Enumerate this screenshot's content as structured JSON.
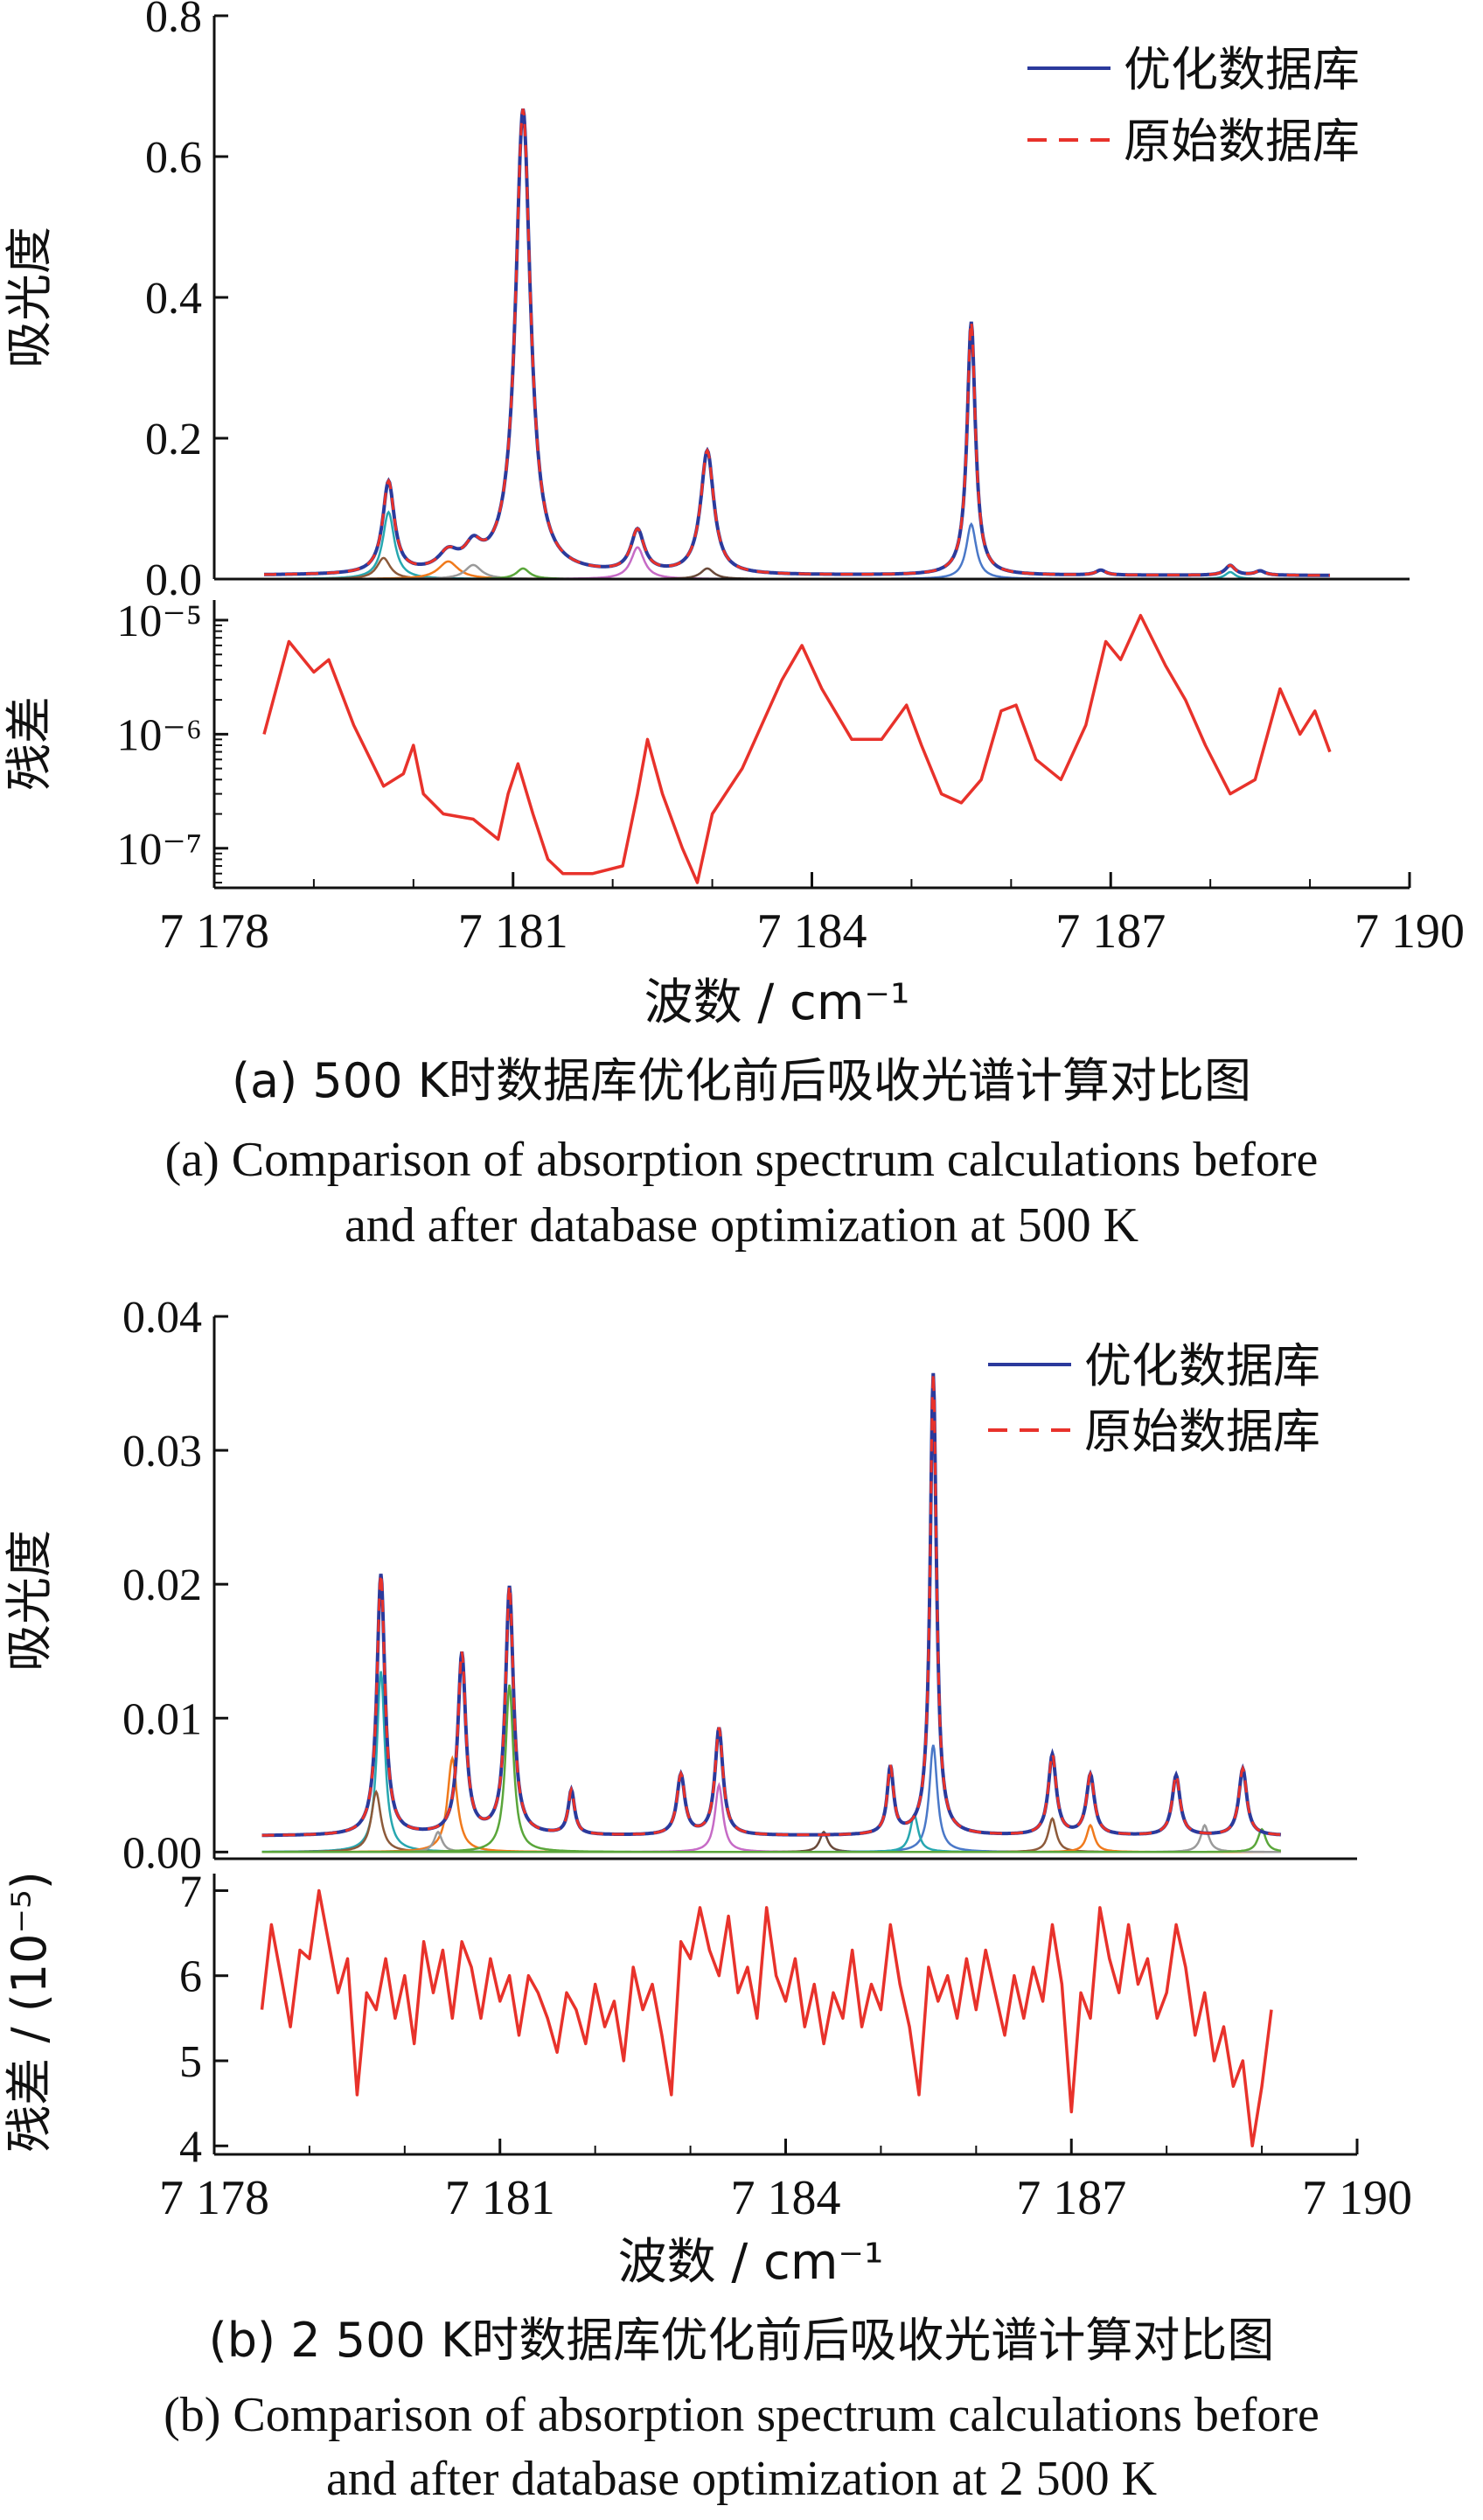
{
  "panels": [
    {
      "caption_cn": "(a) 500 K时数据库优化前后吸收光谱计算对比图",
      "caption_en_line1": "(a) Comparison of absorption spectrum calculations before",
      "caption_en_line2": "and after database optimization at 500 K"
    },
    {
      "caption_cn": "(b) 2 500 K时数据库优化前后吸收光谱计算对比图",
      "caption_en_line1": "(b) Comparison of absorption spectrum calculations before",
      "caption_en_line2": "and after database optimization at 2 500 K"
    }
  ],
  "colors": {
    "optimized": "#2b3a9c",
    "original": "#e8322b",
    "residual": "#e8322b",
    "components": [
      "#27a7b0",
      "#8d5a3a",
      "#f07a1c",
      "#9a9a9a",
      "#5aa63a",
      "#c66bc6",
      "#6a4a3a",
      "#4a78c8"
    ]
  },
  "chart_data": [
    {
      "type": "line",
      "panel": "a",
      "xlabel": "波数 / cm⁻¹",
      "xlim": [
        7178,
        7190
      ],
      "xticks": [
        7178,
        7181,
        7184,
        7187,
        7190
      ],
      "xtick_labels": [
        "7 178",
        "7 181",
        "7 184",
        "7 187",
        "7 190"
      ],
      "x_range": [
        7178.5,
        7189.2
      ],
      "absorbance": {
        "ylabel": "吸光度",
        "ylim": [
          0,
          0.8
        ],
        "yticks": [
          0.0,
          0.2,
          0.4,
          0.6,
          0.8
        ],
        "ytick_labels": [
          "0.0",
          "0.2",
          "0.4",
          "0.6",
          "0.8"
        ],
        "legend": [
          "优化数据库",
          "原始数据库"
        ],
        "legend_position": "top-right",
        "baseline": 0.005,
        "peaks": [
          {
            "x": 7179.75,
            "height": 0.13,
            "width": 0.07
          },
          {
            "x": 7180.35,
            "height": 0.025,
            "width": 0.12
          },
          {
            "x": 7180.6,
            "height": 0.03,
            "width": 0.1
          },
          {
            "x": 7181.1,
            "height": 0.66,
            "width": 0.09
          },
          {
            "x": 7182.25,
            "height": 0.06,
            "width": 0.08
          },
          {
            "x": 7182.95,
            "height": 0.175,
            "width": 0.08
          },
          {
            "x": 7185.6,
            "height": 0.36,
            "width": 0.05
          },
          {
            "x": 7186.9,
            "height": 0.007,
            "width": 0.06
          },
          {
            "x": 7188.2,
            "height": 0.014,
            "width": 0.06
          },
          {
            "x": 7188.5,
            "height": 0.006,
            "width": 0.06
          }
        ],
        "components": [
          {
            "x": 7179.75,
            "height": 0.095,
            "width": 0.07
          },
          {
            "x": 7179.7,
            "height": 0.03,
            "width": 0.08
          },
          {
            "x": 7180.35,
            "height": 0.025,
            "width": 0.12
          },
          {
            "x": 7180.6,
            "height": 0.02,
            "width": 0.1
          },
          {
            "x": 7181.1,
            "height": 0.015,
            "width": 0.08
          },
          {
            "x": 7182.25,
            "height": 0.045,
            "width": 0.08
          },
          {
            "x": 7182.95,
            "height": 0.015,
            "width": 0.08
          },
          {
            "x": 7185.6,
            "height": 0.078,
            "width": 0.06
          },
          {
            "x": 7188.2,
            "height": 0.01,
            "width": 0.06
          }
        ]
      },
      "residual": {
        "ylabel": "残差",
        "scale": "log",
        "ylim": [
          4.5e-08,
          1.5e-05
        ],
        "yticks": [
          1e-07,
          1e-06,
          1e-05
        ],
        "ytick_labels": [
          "10⁻⁷",
          "10⁻⁶",
          "10⁻⁵"
        ],
        "points": [
          [
            7178.5,
            1e-06
          ],
          [
            7178.75,
            6.5e-06
          ],
          [
            7179.0,
            3.5e-06
          ],
          [
            7179.15,
            4.5e-06
          ],
          [
            7179.4,
            1.2e-06
          ],
          [
            7179.7,
            3.5e-07
          ],
          [
            7179.9,
            4.5e-07
          ],
          [
            7180.0,
            8e-07
          ],
          [
            7180.1,
            3e-07
          ],
          [
            7180.3,
            2e-07
          ],
          [
            7180.6,
            1.8e-07
          ],
          [
            7180.85,
            1.2e-07
          ],
          [
            7180.95,
            3e-07
          ],
          [
            7181.05,
            5.5e-07
          ],
          [
            7181.2,
            2e-07
          ],
          [
            7181.35,
            8e-08
          ],
          [
            7181.5,
            6e-08
          ],
          [
            7181.8,
            6e-08
          ],
          [
            7182.1,
            7e-08
          ],
          [
            7182.25,
            3e-07
          ],
          [
            7182.35,
            9e-07
          ],
          [
            7182.5,
            3e-07
          ],
          [
            7182.7,
            1e-07
          ],
          [
            7182.85,
            5e-08
          ],
          [
            7183.0,
            2e-07
          ],
          [
            7183.3,
            5e-07
          ],
          [
            7183.7,
            3e-06
          ],
          [
            7183.9,
            6e-06
          ],
          [
            7184.1,
            2.5e-06
          ],
          [
            7184.4,
            9e-07
          ],
          [
            7184.7,
            9e-07
          ],
          [
            7184.95,
            1.8e-06
          ],
          [
            7185.1,
            8e-07
          ],
          [
            7185.3,
            3e-07
          ],
          [
            7185.5,
            2.5e-07
          ],
          [
            7185.7,
            4e-07
          ],
          [
            7185.9,
            1.6e-06
          ],
          [
            7186.05,
            1.8e-06
          ],
          [
            7186.25,
            6e-07
          ],
          [
            7186.5,
            4e-07
          ],
          [
            7186.75,
            1.2e-06
          ],
          [
            7186.95,
            6.5e-06
          ],
          [
            7187.1,
            4.5e-06
          ],
          [
            7187.3,
            1.1e-05
          ],
          [
            7187.55,
            4e-06
          ],
          [
            7187.75,
            2e-06
          ],
          [
            7187.95,
            8e-07
          ],
          [
            7188.2,
            3e-07
          ],
          [
            7188.45,
            4e-07
          ],
          [
            7188.7,
            2.5e-06
          ],
          [
            7188.9,
            1e-06
          ],
          [
            7189.05,
            1.6e-06
          ],
          [
            7189.2,
            7e-07
          ]
        ]
      }
    },
    {
      "type": "line",
      "panel": "b",
      "xlabel": "波数 / cm⁻¹",
      "xlim": [
        7178,
        7190
      ],
      "xticks": [
        7178,
        7181,
        7184,
        7187,
        7190
      ],
      "xtick_labels": [
        "7 178",
        "7 181",
        "7 184",
        "7 187",
        "7 190"
      ],
      "x_range": [
        7178.5,
        7189.2
      ],
      "absorbance": {
        "ylabel": "吸光度",
        "ylim": [
          -0.0005,
          0.04
        ],
        "yticks": [
          0.0,
          0.01,
          0.02,
          0.03,
          0.04
        ],
        "ytick_labels": [
          "0.00",
          "0.01",
          "0.02",
          "0.03",
          "0.04"
        ],
        "legend": [
          "优化数据库",
          "原始数据库"
        ],
        "legend_position": "top-right",
        "baseline": 0.0012,
        "peaks": [
          {
            "x": 7179.75,
            "height": 0.0195,
            "width": 0.05
          },
          {
            "x": 7180.6,
            "height": 0.0135,
            "width": 0.05
          },
          {
            "x": 7181.1,
            "height": 0.0185,
            "width": 0.05
          },
          {
            "x": 7181.75,
            "height": 0.0033,
            "width": 0.04
          },
          {
            "x": 7182.9,
            "height": 0.0045,
            "width": 0.05
          },
          {
            "x": 7183.3,
            "height": 0.008,
            "width": 0.05
          },
          {
            "x": 7185.1,
            "height": 0.005,
            "width": 0.04
          },
          {
            "x": 7185.55,
            "height": 0.0345,
            "width": 0.04
          },
          {
            "x": 7186.8,
            "height": 0.006,
            "width": 0.05
          },
          {
            "x": 7187.2,
            "height": 0.0045,
            "width": 0.05
          },
          {
            "x": 7188.1,
            "height": 0.0045,
            "width": 0.05
          },
          {
            "x": 7188.8,
            "height": 0.005,
            "width": 0.05
          }
        ],
        "components": [
          {
            "x": 7179.75,
            "height": 0.0135,
            "width": 0.05
          },
          {
            "x": 7179.7,
            "height": 0.0045,
            "width": 0.06
          },
          {
            "x": 7180.5,
            "height": 0.007,
            "width": 0.06
          },
          {
            "x": 7180.35,
            "height": 0.0015,
            "width": 0.05
          },
          {
            "x": 7181.1,
            "height": 0.0125,
            "width": 0.05
          },
          {
            "x": 7183.3,
            "height": 0.005,
            "width": 0.05
          },
          {
            "x": 7184.4,
            "height": 0.0015,
            "width": 0.05
          },
          {
            "x": 7185.55,
            "height": 0.008,
            "width": 0.05
          },
          {
            "x": 7185.35,
            "height": 0.0028,
            "width": 0.05
          },
          {
            "x": 7186.8,
            "height": 0.0025,
            "width": 0.05
          },
          {
            "x": 7187.2,
            "height": 0.002,
            "width": 0.05
          },
          {
            "x": 7188.4,
            "height": 0.002,
            "width": 0.05
          },
          {
            "x": 7189.0,
            "height": 0.0017,
            "width": 0.05
          }
        ]
      },
      "residual": {
        "ylabel": "残差 / (10⁻⁵)",
        "ylim": [
          3.9,
          7.2
        ],
        "yticks": [
          4,
          5,
          6,
          7
        ],
        "ytick_labels": [
          "4",
          "5",
          "6",
          "7"
        ],
        "points": [
          [
            7178.5,
            5.6
          ],
          [
            7178.6,
            6.6
          ],
          [
            7178.7,
            6.0
          ],
          [
            7178.8,
            5.4
          ],
          [
            7178.9,
            6.3
          ],
          [
            7179.0,
            6.2
          ],
          [
            7179.1,
            7.0
          ],
          [
            7179.2,
            6.4
          ],
          [
            7179.3,
            5.8
          ],
          [
            7179.4,
            6.2
          ],
          [
            7179.5,
            4.6
          ],
          [
            7179.6,
            5.8
          ],
          [
            7179.7,
            5.6
          ],
          [
            7179.8,
            6.2
          ],
          [
            7179.9,
            5.5
          ],
          [
            7180.0,
            6.0
          ],
          [
            7180.1,
            5.2
          ],
          [
            7180.2,
            6.4
          ],
          [
            7180.3,
            5.8
          ],
          [
            7180.4,
            6.3
          ],
          [
            7180.5,
            5.5
          ],
          [
            7180.6,
            6.4
          ],
          [
            7180.7,
            6.1
          ],
          [
            7180.8,
            5.5
          ],
          [
            7180.9,
            6.2
          ],
          [
            7181.0,
            5.7
          ],
          [
            7181.1,
            6.0
          ],
          [
            7181.2,
            5.3
          ],
          [
            7181.3,
            6.0
          ],
          [
            7181.4,
            5.8
          ],
          [
            7181.5,
            5.5
          ],
          [
            7181.6,
            5.1
          ],
          [
            7181.7,
            5.8
          ],
          [
            7181.8,
            5.6
          ],
          [
            7181.9,
            5.2
          ],
          [
            7182.0,
            5.9
          ],
          [
            7182.1,
            5.4
          ],
          [
            7182.2,
            5.7
          ],
          [
            7182.3,
            5.0
          ],
          [
            7182.4,
            6.1
          ],
          [
            7182.5,
            5.6
          ],
          [
            7182.6,
            5.9
          ],
          [
            7182.7,
            5.3
          ],
          [
            7182.8,
            4.6
          ],
          [
            7182.9,
            6.4
          ],
          [
            7183.0,
            6.2
          ],
          [
            7183.1,
            6.8
          ],
          [
            7183.2,
            6.3
          ],
          [
            7183.3,
            6.0
          ],
          [
            7183.4,
            6.7
          ],
          [
            7183.5,
            5.8
          ],
          [
            7183.6,
            6.1
          ],
          [
            7183.7,
            5.5
          ],
          [
            7183.8,
            6.8
          ],
          [
            7183.9,
            6.0
          ],
          [
            7184.0,
            5.7
          ],
          [
            7184.1,
            6.2
          ],
          [
            7184.2,
            5.4
          ],
          [
            7184.3,
            5.9
          ],
          [
            7184.4,
            5.2
          ],
          [
            7184.5,
            5.8
          ],
          [
            7184.6,
            5.5
          ],
          [
            7184.7,
            6.3
          ],
          [
            7184.8,
            5.4
          ],
          [
            7184.9,
            5.9
          ],
          [
            7185.0,
            5.6
          ],
          [
            7185.1,
            6.6
          ],
          [
            7185.2,
            5.9
          ],
          [
            7185.3,
            5.4
          ],
          [
            7185.4,
            4.6
          ],
          [
            7185.5,
            6.1
          ],
          [
            7185.6,
            5.7
          ],
          [
            7185.7,
            6.0
          ],
          [
            7185.8,
            5.5
          ],
          [
            7185.9,
            6.2
          ],
          [
            7186.0,
            5.6
          ],
          [
            7186.1,
            6.3
          ],
          [
            7186.2,
            5.8
          ],
          [
            7186.3,
            5.3
          ],
          [
            7186.4,
            6.0
          ],
          [
            7186.5,
            5.5
          ],
          [
            7186.6,
            6.1
          ],
          [
            7186.7,
            5.7
          ],
          [
            7186.8,
            6.6
          ],
          [
            7186.9,
            5.9
          ],
          [
            7187.0,
            4.4
          ],
          [
            7187.1,
            5.8
          ],
          [
            7187.2,
            5.5
          ],
          [
            7187.3,
            6.8
          ],
          [
            7187.4,
            6.2
          ],
          [
            7187.5,
            5.8
          ],
          [
            7187.6,
            6.6
          ],
          [
            7187.7,
            5.9
          ],
          [
            7187.8,
            6.2
          ],
          [
            7187.9,
            5.5
          ],
          [
            7188.0,
            5.8
          ],
          [
            7188.1,
            6.6
          ],
          [
            7188.2,
            6.1
          ],
          [
            7188.3,
            5.3
          ],
          [
            7188.4,
            5.8
          ],
          [
            7188.5,
            5.0
          ],
          [
            7188.6,
            5.4
          ],
          [
            7188.7,
            4.7
          ],
          [
            7188.8,
            5.0
          ],
          [
            7188.9,
            4.0
          ],
          [
            7189.0,
            4.7
          ],
          [
            7189.1,
            5.6
          ]
        ]
      }
    }
  ]
}
